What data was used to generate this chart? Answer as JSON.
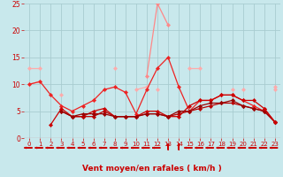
{
  "background_color": "#c8e8ec",
  "grid_color": "#a8ccd0",
  "xlabel": "Vent moyen/en rafales ( km/h )",
  "xlabel_color": "#cc0000",
  "xlabel_fontsize": 6.5,
  "tick_color": "#cc0000",
  "xlim": [
    -0.5,
    23.5
  ],
  "ylim": [
    0,
    25
  ],
  "yticks": [
    0,
    5,
    10,
    15,
    20,
    25
  ],
  "xticks": [
    0,
    1,
    2,
    3,
    4,
    5,
    6,
    7,
    8,
    9,
    10,
    11,
    12,
    13,
    14,
    15,
    16,
    17,
    18,
    19,
    20,
    21,
    22,
    23
  ],
  "lines": [
    {
      "x": [
        0,
        1,
        2,
        3,
        4,
        5,
        6,
        7,
        8,
        9,
        10,
        11,
        12,
        13,
        14,
        15,
        16,
        17,
        18,
        19,
        20,
        21,
        22,
        23
      ],
      "y": [
        13,
        13,
        null,
        null,
        null,
        null,
        null,
        null,
        13,
        null,
        null,
        null,
        9,
        null,
        null,
        13,
        13,
        null,
        null,
        9,
        null,
        null,
        null,
        9
      ],
      "color": "#ffaaaa",
      "linewidth": 0.9
    },
    {
      "x": [
        0,
        1,
        2,
        3,
        4,
        5,
        6,
        7,
        8,
        9,
        10,
        11,
        12,
        13,
        14,
        15,
        16,
        17,
        18,
        19,
        20,
        21,
        22,
        23
      ],
      "y": [
        10,
        10.5,
        null,
        8,
        null,
        null,
        7,
        null,
        null,
        null,
        9,
        9.5,
        null,
        null,
        null,
        null,
        null,
        null,
        null,
        null,
        9,
        null,
        null,
        9.5
      ],
      "color": "#ffaaaa",
      "linewidth": 0.9
    },
    {
      "x": [
        0,
        1,
        2,
        3,
        4,
        5,
        6,
        7,
        8,
        9,
        10,
        11,
        12,
        13,
        14,
        15,
        16,
        17,
        18,
        19,
        20,
        21,
        22,
        23
      ],
      "y": [
        10,
        10.5,
        8,
        6,
        5,
        6,
        7,
        9,
        9.5,
        8.5,
        4.5,
        9,
        13,
        15,
        9.5,
        5,
        7,
        7,
        8,
        8,
        7,
        6,
        5,
        null
      ],
      "color": "#ee2222",
      "linewidth": 0.9
    },
    {
      "x": [
        0,
        1,
        2,
        3,
        4,
        5,
        6,
        7,
        8,
        9,
        10,
        11,
        12,
        13,
        14,
        15,
        16,
        17,
        18,
        19,
        20,
        21,
        22,
        23
      ],
      "y": [
        null,
        null,
        2.5,
        5.5,
        4,
        4,
        5,
        5.5,
        4,
        4,
        4,
        5,
        5,
        4,
        4,
        6,
        7,
        7,
        8,
        8,
        7,
        7,
        5.5,
        3
      ],
      "color": "#cc0000",
      "linewidth": 0.9
    },
    {
      "x": [
        0,
        1,
        2,
        3,
        4,
        5,
        6,
        7,
        8,
        9,
        10,
        11,
        12,
        13,
        14,
        15,
        16,
        17,
        18,
        19,
        20,
        21,
        22,
        23
      ],
      "y": [
        null,
        null,
        null,
        5,
        4,
        4,
        4,
        5,
        4,
        4,
        4,
        4.5,
        4.5,
        4,
        4.5,
        5,
        5.5,
        6,
        6.5,
        6.5,
        6,
        5.5,
        5,
        3
      ],
      "color": "#bb0000",
      "linewidth": 0.9
    },
    {
      "x": [
        0,
        1,
        2,
        3,
        4,
        5,
        6,
        7,
        8,
        9,
        10,
        11,
        12,
        13,
        14,
        15,
        16,
        17,
        18,
        19,
        20,
        21,
        22,
        23
      ],
      "y": [
        null,
        null,
        null,
        5,
        4,
        4.5,
        4.5,
        4.5,
        4,
        4,
        4,
        4.5,
        4.5,
        4,
        5,
        5,
        6,
        6.5,
        6.5,
        7,
        6,
        5.5,
        5,
        3
      ],
      "color": "#990000",
      "linewidth": 0.9
    },
    {
      "x": [
        0,
        1,
        2,
        3,
        4,
        5,
        6,
        7,
        8,
        9,
        10,
        11,
        12,
        13,
        14,
        15,
        16,
        17,
        18,
        19,
        20,
        21,
        22,
        23
      ],
      "y": [
        null,
        null,
        null,
        null,
        null,
        null,
        null,
        null,
        null,
        null,
        null,
        11.5,
        25,
        21,
        null,
        null,
        null,
        null,
        null,
        null,
        null,
        null,
        null,
        null
      ],
      "color": "#ff8888",
      "linewidth": 0.9
    },
    {
      "x": [
        0,
        1,
        2,
        3,
        4,
        5,
        6,
        7,
        8,
        9,
        10,
        11,
        12,
        13,
        14,
        15,
        16,
        17,
        18,
        19,
        20,
        21,
        22,
        23
      ],
      "y": [
        null,
        null,
        null,
        null,
        null,
        null,
        null,
        null,
        null,
        null,
        null,
        null,
        null,
        null,
        null,
        null,
        null,
        null,
        null,
        null,
        null,
        null,
        5.5,
        3
      ],
      "color": "#cc0000",
      "linewidth": 0.9
    }
  ],
  "arrow_color": "#cc0000",
  "up_arrows": [
    13,
    14
  ]
}
